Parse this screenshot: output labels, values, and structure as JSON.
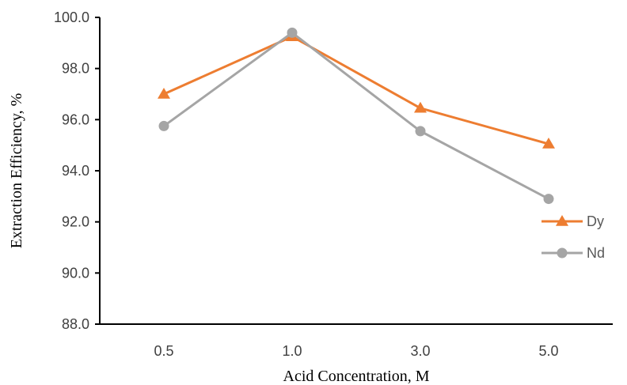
{
  "chart_data": {
    "type": "line",
    "title": "",
    "xlabel": "Acid Concentration, M",
    "ylabel": "Extraction Efficiency, %",
    "categories": [
      "0.5",
      "1.0",
      "3.0",
      "5.0"
    ],
    "yticks": [
      "88.0",
      "90.0",
      "92.0",
      "94.0",
      "96.0",
      "98.0",
      "100.0"
    ],
    "ylim": [
      88,
      100
    ],
    "grid": false,
    "legend_position": "right",
    "series": [
      {
        "name": "Dy",
        "marker": "triangle",
        "color": "#ED7D31",
        "values": [
          97.0,
          99.25,
          96.45,
          95.05
        ]
      },
      {
        "name": "Nd",
        "marker": "circle",
        "color": "#A5A5A5",
        "values": [
          95.75,
          99.4,
          95.55,
          92.9
        ]
      }
    ]
  }
}
